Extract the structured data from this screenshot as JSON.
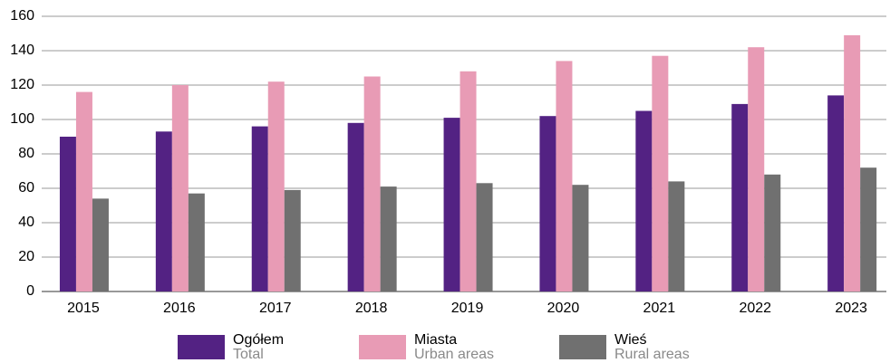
{
  "chart_data": {
    "type": "bar",
    "categories": [
      "2015",
      "2016",
      "2017",
      "2018",
      "2019",
      "2020",
      "2021",
      "2022",
      "2023"
    ],
    "series": [
      {
        "name": "Ogółem",
        "subname": "Total",
        "color": "#532283",
        "values": [
          90,
          93,
          96,
          98,
          101,
          102,
          105,
          109,
          114
        ]
      },
      {
        "name": "Miasta",
        "subname": "Urban areas",
        "color": "#e89bb5",
        "values": [
          116,
          120,
          122,
          125,
          128,
          134,
          137,
          142,
          149
        ]
      },
      {
        "name": "Wieś",
        "subname": "Rural areas",
        "color": "#707070",
        "values": [
          54,
          57,
          59,
          61,
          63,
          62,
          64,
          68,
          72
        ]
      }
    ],
    "ylim": [
      0,
      160
    ],
    "yticks": [
      0,
      20,
      40,
      60,
      80,
      100,
      120,
      140,
      160
    ],
    "grid": true,
    "legend": "bottom"
  }
}
